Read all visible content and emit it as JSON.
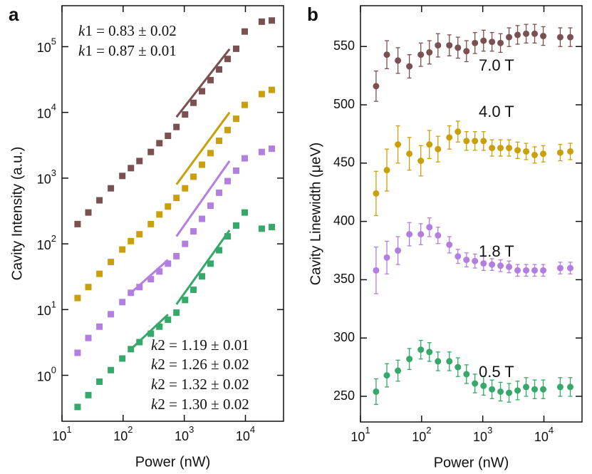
{
  "chart_data": [
    {
      "type": "scatter",
      "panel_label": "a",
      "x_label": "Power (nW)",
      "y_label": "Cavity Intensity (a.u.)",
      "log_x": true,
      "log_y": true,
      "xlim": [
        10,
        42000
      ],
      "ylim": [
        0.2,
        420000
      ],
      "xticks": [
        {
          "value": 10,
          "label": "10^1"
        },
        {
          "value": 100,
          "label": "10^2"
        },
        {
          "value": 1000,
          "label": "10^3"
        },
        {
          "value": 10000,
          "label": "10^4"
        }
      ],
      "yticks": [
        {
          "value": 1,
          "label": "10^0"
        },
        {
          "value": 10,
          "label": "10^1"
        },
        {
          "value": 100,
          "label": "10^2"
        },
        {
          "value": 1000,
          "label": "10^3"
        },
        {
          "value": 10000,
          "label": "10^4"
        },
        {
          "value": 100000,
          "label": "10^5"
        }
      ],
      "x": [
        18,
        27,
        41,
        63,
        97,
        134,
        185,
        284,
        392,
        541,
        745,
        1030,
        1415,
        1950,
        2690,
        3710,
        5120,
        7060,
        9740,
        18500,
        27000
      ],
      "series": [
        {
          "color": "#7b5050",
          "values": [
            200,
            300,
            460,
            700,
            1080,
            1420,
            1820,
            2500,
            3400,
            4400,
            6000,
            9300,
            14000,
            21000,
            31000,
            45000,
            65000,
            93000,
            170000,
            240000,
            250000
          ]
        },
        {
          "color": "#c9a00c",
          "values": [
            15,
            22,
            35,
            53,
            82,
            110,
            140,
            200,
            280,
            370,
            500,
            700,
            1050,
            1600,
            2400,
            3700,
            5400,
            8000,
            13000,
            19000,
            22000
          ]
        },
        {
          "color": "#b27fe0",
          "values": [
            2.2,
            3.7,
            5.5,
            8.5,
            13,
            18,
            22,
            29,
            38,
            50,
            65,
            100,
            155,
            240,
            380,
            600,
            900,
            1300,
            2000,
            2500,
            2800
          ]
        },
        {
          "color": "#35a86a",
          "values": [
            0.33,
            0.5,
            0.8,
            1.2,
            1.8,
            2.5,
            3.2,
            4.3,
            5.5,
            7,
            9,
            14,
            20,
            32,
            50,
            80,
            130,
            190,
            300,
            170,
            180
          ]
        }
      ],
      "lines": [
        {
          "color": "#7b5050",
          "x": [
            745,
            5500
          ],
          "values": [
            8500,
            92000
          ]
        },
        {
          "color": "#c9a00c",
          "x": [
            745,
            5500
          ],
          "values": [
            800,
            10000
          ]
        },
        {
          "color": "#b27fe0",
          "x": [
            134,
            541
          ],
          "values": [
            18,
            57
          ]
        },
        {
          "color": "#b27fe0",
          "x": [
            745,
            5500
          ],
          "values": [
            130,
            1820
          ]
        },
        {
          "color": "#35a86a",
          "x": [
            134,
            541
          ],
          "values": [
            2.5,
            8.4
          ]
        },
        {
          "color": "#35a86a",
          "x": [
            745,
            5500
          ],
          "values": [
            12,
            161
          ]
        }
      ],
      "annotations": [
        {
          "text": "k1 = 0.83 ± 0.02",
          "color": "#b27fe0"
        },
        {
          "text": "k1 = 0.87 ± 0.01",
          "color": "#35a86a"
        },
        {
          "text": "k2 = 1.19 ± 0.01",
          "color": "#7b5050"
        },
        {
          "text": "k2 = 1.26 ± 0.02",
          "color": "#c9a00c"
        },
        {
          "text": "k2 = 1.32 ± 0.02",
          "color": "#b27fe0"
        },
        {
          "text": "k2 = 1.30 ± 0.02",
          "color": "#35a86a"
        }
      ]
    },
    {
      "type": "errorbar",
      "panel_label": "b",
      "x_label": "Power (nW)",
      "y_label": "Cavity Linewidth (μeV)",
      "log_x": true,
      "log_y": false,
      "xlim": [
        10,
        42000
      ],
      "ylim": [
        228,
        585
      ],
      "xticks": [
        {
          "value": 10,
          "label": "10^1"
        },
        {
          "value": 100,
          "label": "10^2"
        },
        {
          "value": 1000,
          "label": "10^3"
        },
        {
          "value": 10000,
          "label": "10^4"
        }
      ],
      "yticks": [
        250,
        300,
        350,
        400,
        450,
        500,
        550
      ],
      "x": [
        18,
        27,
        41,
        63,
        97,
        134,
        185,
        284,
        392,
        541,
        745,
        1030,
        1415,
        1950,
        2690,
        3710,
        5120,
        7060,
        9740,
        18500,
        27000
      ],
      "series": [
        {
          "name": "7.0 T",
          "color": "#7b5050",
          "values": [
            516,
            543,
            538,
            533,
            543,
            545,
            551,
            551,
            549,
            546,
            553,
            555,
            554,
            553,
            558,
            560,
            561,
            561,
            559,
            558,
            558
          ],
          "errors": [
            13,
            12,
            11,
            10,
            10,
            10,
            10,
            9,
            9,
            9,
            9,
            9,
            8,
            8,
            8,
            8,
            8,
            8,
            8,
            8,
            8
          ]
        },
        {
          "name": "4.0 T",
          "color": "#c9a00c",
          "values": [
            424,
            444,
            466,
            458,
            452,
            466,
            462,
            472,
            477,
            469,
            469,
            469,
            463,
            463,
            463,
            461,
            460,
            457,
            458,
            459,
            460
          ],
          "errors": [
            19,
            18,
            16,
            14,
            13,
            12,
            11,
            10,
            9,
            8,
            8,
            8,
            7,
            7,
            7,
            7,
            7,
            7,
            7,
            7,
            7
          ]
        },
        {
          "name": "1.8 T",
          "color": "#b27fe0",
          "values": [
            358,
            369,
            375,
            389,
            389,
            395,
            388,
            380,
            370,
            367,
            366,
            364,
            363,
            362,
            361,
            358,
            358,
            358,
            358,
            360,
            360
          ],
          "errors": [
            20,
            14,
            12,
            10,
            9,
            8,
            7,
            7,
            6,
            6,
            6,
            6,
            5,
            5,
            5,
            5,
            5,
            5,
            5,
            5,
            5
          ]
        },
        {
          "name": "0.5 T",
          "color": "#35a86a",
          "values": [
            254,
            268,
            272,
            282,
            290,
            288,
            280,
            280,
            275,
            269,
            261,
            259,
            256,
            254,
            253,
            255,
            258,
            256,
            256,
            258,
            258
          ],
          "errors": [
            11,
            10,
            9,
            9,
            8,
            8,
            8,
            8,
            8,
            8,
            8,
            8,
            8,
            8,
            8,
            8,
            8,
            8,
            8,
            8,
            8
          ]
        }
      ]
    }
  ]
}
